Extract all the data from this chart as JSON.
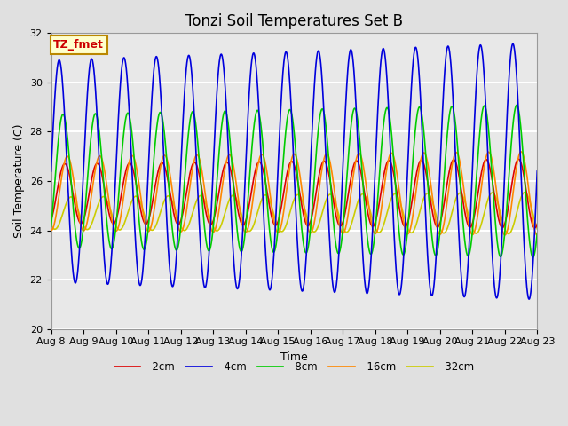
{
  "title": "Tonzi Soil Temperatures Set B",
  "xlabel": "Time",
  "ylabel": "Soil Temperature (C)",
  "ylim": [
    20,
    32
  ],
  "yticks": [
    20,
    22,
    24,
    26,
    28,
    30,
    32
  ],
  "xtick_labels": [
    "Aug 8",
    "Aug 9",
    "Aug 10",
    "Aug 11",
    "Aug 12",
    "Aug 13",
    "Aug 14",
    "Aug 15",
    "Aug 16",
    "Aug 17",
    "Aug 18",
    "Aug 19",
    "Aug 20",
    "Aug 21",
    "Aug 22",
    "Aug 23"
  ],
  "annotation_text": "TZ_fmet",
  "annotation_color": "#cc0000",
  "annotation_bg": "#ffffcc",
  "annotation_border": "#bb8800",
  "background_color": "#e0e0e0",
  "plot_bg": "#e8e8e8",
  "grid_color": "#ffffff",
  "title_fontsize": 12,
  "label_fontsize": 9,
  "tick_fontsize": 8,
  "days": 15,
  "n_points": 1500
}
